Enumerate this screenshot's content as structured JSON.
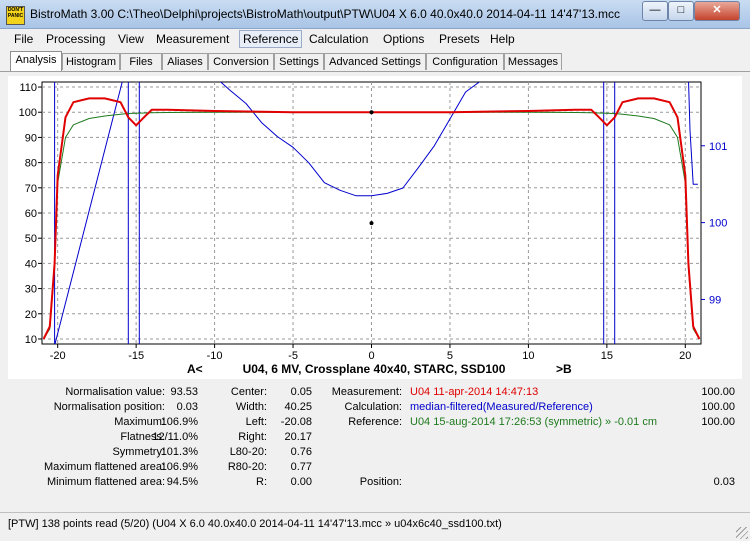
{
  "window": {
    "title": "BistroMath 3.00    C:\\Theo\\Delphi\\projects\\BistroMath\\output\\PTW\\U04 X 6.0 40.0x40.0 2014-04-11 14'47'13.mcc",
    "logo": "DON'T PANIC"
  },
  "menu": [
    "File",
    "Processing",
    "View",
    "Measurement",
    "Reference",
    "Calculation",
    "Options",
    "Presets",
    "Help"
  ],
  "tabs": [
    "Analysis",
    "Histogram",
    "Files",
    "Aliases",
    "Conversion",
    "Settings",
    "Advanced Settings",
    "Configuration",
    "Messages"
  ],
  "chart": {
    "caption_left": "A<",
    "caption": "U04, 6 MV, Crossplane 40x40, STARC, SSD100",
    "caption_right": ">B",
    "y_ticks": [
      "110",
      "100",
      "90",
      "80",
      "70",
      "60",
      "50",
      "40",
      "30",
      "20",
      "10"
    ],
    "x_ticks": [
      "-20",
      "-15",
      "-10",
      "-5",
      "0",
      "5",
      "10",
      "15",
      "20"
    ],
    "y2_ticks": [
      "101",
      "100",
      "99"
    ]
  },
  "chart_data": {
    "type": "line",
    "xlim": [
      -21,
      21
    ],
    "ylim": [
      8,
      112
    ],
    "y2lim": [
      98.42,
      101.83
    ],
    "grid": true,
    "x": [
      -20.9,
      -20.5,
      -20.2,
      -20,
      -19.5,
      -19,
      -18,
      -17,
      -16,
      -15.5,
      -15,
      -14.5,
      -14,
      -13,
      -10,
      -5,
      0,
      5,
      10,
      13,
      14,
      14.5,
      15,
      15.5,
      16,
      17,
      18,
      19,
      19.5,
      20,
      20.2,
      20.5,
      20.9
    ],
    "series": [
      {
        "color": "#e00000",
        "values": [
          10,
          15,
          40,
          75,
          98,
          104,
          105.5,
          105.5,
          104,
          98,
          94.8,
          98,
          101,
          101,
          100.5,
          100,
          100,
          100,
          100.5,
          101,
          101,
          98,
          94.8,
          98,
          104,
          105.5,
          105.5,
          104,
          98,
          75,
          40,
          15,
          10
        ]
      },
      {
        "color": "#1e7a1e",
        "values": [
          10,
          14,
          38,
          72,
          90,
          95,
          97.5,
          98.5,
          99.2,
          99.5,
          99.6,
          99.7,
          99.8,
          99.9,
          100,
          100,
          100,
          100,
          100,
          99.9,
          99.8,
          99.7,
          99.6,
          99.5,
          99.2,
          98.5,
          97.5,
          95,
          90,
          72,
          38,
          14,
          10
        ]
      },
      {
        "color": "#0000cc",
        "axis": "right",
        "x": [
          -20.2,
          -20.2,
          -15.8,
          -15.5,
          -15.5,
          -15,
          -14.8,
          -14.8,
          -10,
          -9,
          -8,
          -7,
          -6,
          -5,
          -4,
          -3,
          -2,
          -1,
          0,
          1,
          2,
          3,
          4,
          5,
          6,
          7,
          8,
          9,
          14.8,
          14.8,
          15,
          15.5,
          15.5,
          15.8,
          20.2,
          20.3,
          20.5,
          20.8
        ],
        "values": [
          101.9,
          98.4,
          101.9,
          101.9,
          98.4,
          98.4,
          98.4,
          101.9,
          101.9,
          101.72,
          101.55,
          101.3,
          101.12,
          100.98,
          100.78,
          100.52,
          100.42,
          100.35,
          100.35,
          100.38,
          100.45,
          100.72,
          101.0,
          101.35,
          101.7,
          101.85,
          101.9,
          101.9,
          101.9,
          98.4,
          98.4,
          98.4,
          101.9,
          101.9,
          101.9,
          101.2,
          100.5,
          100.5
        ]
      }
    ],
    "markers": [
      {
        "x": 0,
        "y": 100
      },
      {
        "x": 0,
        "y": 56
      }
    ]
  },
  "info": {
    "col1": [
      {
        "label": "Normalisation value:",
        "value": "93.53"
      },
      {
        "label": "Normalisation position:",
        "value": "0.03"
      },
      {
        "label": "Maximum:",
        "value": "106.9%"
      },
      {
        "label": "Flatness:",
        "value": "12/11.0%"
      },
      {
        "label": "Symmetry:",
        "value": "101.3%"
      },
      {
        "label": "Maximum flattened area:",
        "value": "106.9%"
      },
      {
        "label": "Minimum flattened area:",
        "value": "94.5%"
      }
    ],
    "col2": [
      {
        "label": "Center:",
        "value": "0.05"
      },
      {
        "label": "Width:",
        "value": "40.25"
      },
      {
        "label": "Left:",
        "value": "-20.08"
      },
      {
        "label": "Right:",
        "value": "20.17"
      },
      {
        "label": "L80-20:",
        "value": "0.76"
      },
      {
        "label": "R80-20:",
        "value": "0.77"
      },
      {
        "label": "R:",
        "value": "0.00"
      }
    ],
    "col3": [
      {
        "label": "Measurement:",
        "text": "U04 11-apr-2014 14:47:13",
        "color": "#e00000",
        "value": "100.00"
      },
      {
        "label": "Calculation:",
        "text": "median-filtered(Measured/Reference)",
        "color": "#0000cc",
        "value": "100.00"
      },
      {
        "label": "Reference:",
        "text": "U04 15-aug-2014 17:26:53 (symmetric) » -0.01 cm",
        "color": "#1e7a1e",
        "value": "100.00"
      }
    ],
    "position_label": "Position:",
    "position_value": "0.03"
  },
  "status": "[PTW] 138 points read (5/20) (U04 X 6.0 40.0x40.0 2014-04-11 14'47'13.mcc » u04x6c40_ssd100.txt)"
}
